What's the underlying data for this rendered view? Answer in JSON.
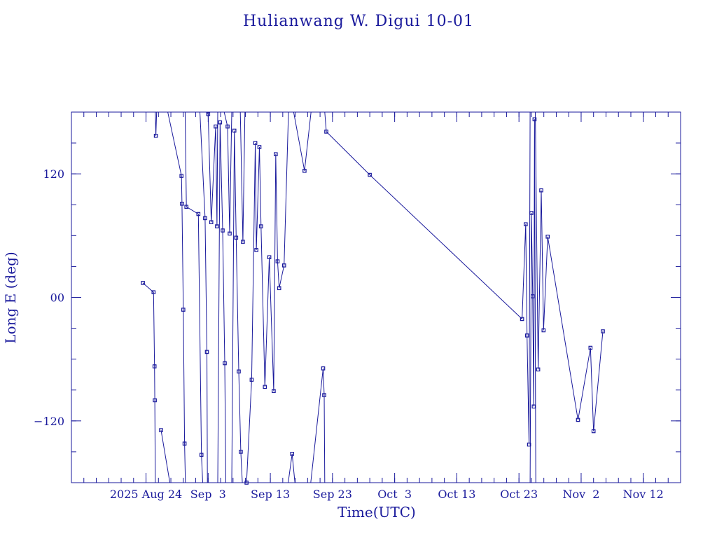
{
  "chart_data": {
    "type": "line",
    "title": "Hulianwang W. Digui 10-01",
    "xlabel": "Time(UTC)",
    "ylabel": "Long E (deg)",
    "x_type": "date",
    "xlim": [
      "2025-08-12T00:00",
      "2025-11-18T00:00"
    ],
    "ylim": [
      -180,
      180
    ],
    "x_tick_labels": [
      {
        "date": "2025-08-24",
        "label": "2025 Aug 24"
      },
      {
        "date": "2025-09-03",
        "label": "Sep  3"
      },
      {
        "date": "2025-09-13",
        "label": "Sep 13"
      },
      {
        "date": "2025-09-23",
        "label": "Sep 23"
      },
      {
        "date": "2025-10-03",
        "label": "Oct  3"
      },
      {
        "date": "2025-10-13",
        "label": "Oct 13"
      },
      {
        "date": "2025-10-23",
        "label": "Oct 23"
      },
      {
        "date": "2025-11-02",
        "label": "Nov  2"
      },
      {
        "date": "2025-11-12",
        "label": "Nov 12"
      }
    ],
    "y_ticks": [
      {
        "value": 120,
        "label": "120"
      },
      {
        "value": 0,
        "label": "00"
      },
      {
        "value": -120,
        "label": "−120"
      }
    ],
    "y_minor_step": 30,
    "x_minor_step_days": 2,
    "segments": [
      [
        {
          "x": "2025-08-23T12:00",
          "y": 14
        },
        {
          "x": "2025-08-25T05:00",
          "y": 5
        },
        {
          "x": "2025-08-25T09:00",
          "y": -67
        },
        {
          "x": "2025-08-25T10:00",
          "y": -100
        },
        {
          "x": "2025-08-25T12:00",
          "y": -180
        }
      ],
      [
        {
          "x": "2025-08-25T12:00",
          "y": 180
        },
        {
          "x": "2025-08-25T14:00",
          "y": 157
        },
        {
          "x": "2025-08-25T17:00",
          "y": 180
        }
      ],
      [
        {
          "x": "2025-08-26T10:00",
          "y": -129
        },
        {
          "x": "2025-08-27T20:00",
          "y": -180
        }
      ],
      [
        {
          "x": "2025-08-27T12:00",
          "y": 180
        },
        {
          "x": "2025-08-29T17:00",
          "y": 118
        },
        {
          "x": "2025-08-29T19:00",
          "y": 91
        },
        {
          "x": "2025-08-30T00:00",
          "y": -12
        },
        {
          "x": "2025-08-30T05:00",
          "y": -142
        },
        {
          "x": "2025-08-30T08:00",
          "y": -180
        }
      ],
      [
        {
          "x": "2025-08-30T07:00",
          "y": 180
        },
        {
          "x": "2025-08-30T12:00",
          "y": 88
        },
        {
          "x": "2025-09-01T10:00",
          "y": 81
        },
        {
          "x": "2025-09-01T22:00",
          "y": -153
        },
        {
          "x": "2025-09-02T03:00",
          "y": -180
        }
      ],
      [
        {
          "x": "2025-09-01T16:00",
          "y": 180
        },
        {
          "x": "2025-09-02T12:00",
          "y": 77
        },
        {
          "x": "2025-09-02T19:00",
          "y": -53
        },
        {
          "x": "2025-09-02T21:00",
          "y": -180
        }
      ],
      [
        {
          "x": "2025-09-02T18:00",
          "y": 180
        },
        {
          "x": "2025-09-03T00:00",
          "y": 178
        },
        {
          "x": "2025-09-03T12:00",
          "y": 73
        },
        {
          "x": "2025-09-04T05:00",
          "y": 166
        },
        {
          "x": "2025-09-04T10:00",
          "y": 69
        },
        {
          "x": "2025-09-04T13:00",
          "y": 180
        }
      ],
      [
        {
          "x": "2025-09-04T13:00",
          "y": -180
        },
        {
          "x": "2025-09-04T22:00",
          "y": 170
        },
        {
          "x": "2025-09-05T08:00",
          "y": 65
        },
        {
          "x": "2025-09-05T16:00",
          "y": -64
        },
        {
          "x": "2025-09-05T20:00",
          "y": -180
        }
      ],
      [
        {
          "x": "2025-09-05T14:00",
          "y": 180
        },
        {
          "x": "2025-09-06T03:00",
          "y": 166
        },
        {
          "x": "2025-09-06T11:00",
          "y": 62
        },
        {
          "x": "2025-09-06T19:00",
          "y": 180
        }
      ],
      [
        {
          "x": "2025-09-06T19:00",
          "y": -180
        },
        {
          "x": "2025-09-07T05:00",
          "y": 162
        },
        {
          "x": "2025-09-07T12:00",
          "y": 58
        },
        {
          "x": "2025-09-07T22:00",
          "y": -72
        },
        {
          "x": "2025-09-08T06:00",
          "y": -150
        },
        {
          "x": "2025-09-08T12:00",
          "y": -180
        }
      ],
      [
        {
          "x": "2025-09-08T04:00",
          "y": 180
        },
        {
          "x": "2025-09-08T14:00",
          "y": 54
        },
        {
          "x": "2025-09-08T22:00",
          "y": 180
        }
      ],
      [
        {
          "x": "2025-09-09T00:00",
          "y": -180
        },
        {
          "x": "2025-09-09T04:00",
          "y": -180
        },
        {
          "x": "2025-09-10T00:00",
          "y": -80
        },
        {
          "x": "2025-09-10T14:00",
          "y": 150
        },
        {
          "x": "2025-09-10T18:00",
          "y": 46
        },
        {
          "x": "2025-09-11T06:00",
          "y": 146
        },
        {
          "x": "2025-09-11T12:00",
          "y": 69
        },
        {
          "x": "2025-09-12T03:00",
          "y": -87
        },
        {
          "x": "2025-09-12T20:00",
          "y": 39
        },
        {
          "x": "2025-09-13T13:00",
          "y": -91
        },
        {
          "x": "2025-09-13T21:00",
          "y": 139
        },
        {
          "x": "2025-09-14T04:00",
          "y": 35
        },
        {
          "x": "2025-09-14T10:00",
          "y": 9
        },
        {
          "x": "2025-09-15T05:00",
          "y": 31
        },
        {
          "x": "2025-09-15T22:00",
          "y": 180
        }
      ],
      [
        {
          "x": "2025-09-15T21:00",
          "y": -180
        },
        {
          "x": "2025-09-16T12:00",
          "y": -152
        },
        {
          "x": "2025-09-16T23:00",
          "y": -180
        }
      ],
      [
        {
          "x": "2025-09-16T18:00",
          "y": 180
        },
        {
          "x": "2025-09-18T12:00",
          "y": 123
        },
        {
          "x": "2025-09-19T13:00",
          "y": 180
        }
      ],
      [
        {
          "x": "2025-09-19T12:00",
          "y": -180
        },
        {
          "x": "2025-09-21T12:00",
          "y": -69
        },
        {
          "x": "2025-09-21T16:00",
          "y": -95
        },
        {
          "x": "2025-09-21T18:00",
          "y": -180
        }
      ],
      [
        {
          "x": "2025-09-21T18:00",
          "y": 180
        },
        {
          "x": "2025-09-22T00:00",
          "y": 161
        },
        {
          "x": "2025-09-29T00:00",
          "y": 119
        },
        {
          "x": "2025-10-23T12:00",
          "y": -21
        },
        {
          "x": "2025-10-24T02:00",
          "y": 71
        },
        {
          "x": "2025-10-24T07:00",
          "y": -37
        },
        {
          "x": "2025-10-24T15:00",
          "y": -143
        },
        {
          "x": "2025-10-24T19:00",
          "y": 180
        }
      ],
      [
        {
          "x": "2025-10-24T19:00",
          "y": -180
        },
        {
          "x": "2025-10-25T00:00",
          "y": 82
        },
        {
          "x": "2025-10-25T05:00",
          "y": 1
        },
        {
          "x": "2025-10-25T09:00",
          "y": -106
        },
        {
          "x": "2025-10-25T12:00",
          "y": 173
        },
        {
          "x": "2025-10-25T17:00",
          "y": -180
        }
      ],
      [
        {
          "x": "2025-10-25T15:00",
          "y": 180
        },
        {
          "x": "2025-10-26T02:00",
          "y": -70
        },
        {
          "x": "2025-10-26T14:00",
          "y": 104
        },
        {
          "x": "2025-10-26T23:00",
          "y": -32
        },
        {
          "x": "2025-10-27T15:00",
          "y": 59
        },
        {
          "x": "2025-11-01T12:00",
          "y": -119
        },
        {
          "x": "2025-11-03T12:00",
          "y": -49
        },
        {
          "x": "2025-11-04T00:00",
          "y": -130
        },
        {
          "x": "2025-11-05T12:00",
          "y": -33
        }
      ]
    ],
    "markers": [
      {
        "x": "2025-08-23T12:00",
        "y": 14
      },
      {
        "x": "2025-08-25T05:00",
        "y": 5
      },
      {
        "x": "2025-08-25T09:00",
        "y": -67
      },
      {
        "x": "2025-08-25T10:00",
        "y": -100
      },
      {
        "x": "2025-08-25T14:00",
        "y": 157
      },
      {
        "x": "2025-08-26T10:00",
        "y": -129
      },
      {
        "x": "2025-08-29T17:00",
        "y": 118
      },
      {
        "x": "2025-08-29T19:00",
        "y": 91
      },
      {
        "x": "2025-08-30T00:00",
        "y": -12
      },
      {
        "x": "2025-08-30T05:00",
        "y": -142
      },
      {
        "x": "2025-08-30T12:00",
        "y": 88
      },
      {
        "x": "2025-09-01T10:00",
        "y": 81
      },
      {
        "x": "2025-09-01T22:00",
        "y": -153
      },
      {
        "x": "2025-09-02T12:00",
        "y": 77
      },
      {
        "x": "2025-09-02T19:00",
        "y": -53
      },
      {
        "x": "2025-09-03T00:00",
        "y": 178
      },
      {
        "x": "2025-09-03T12:00",
        "y": 73
      },
      {
        "x": "2025-09-04T05:00",
        "y": 166
      },
      {
        "x": "2025-09-04T10:00",
        "y": 69
      },
      {
        "x": "2025-09-04T22:00",
        "y": 170
      },
      {
        "x": "2025-09-05T08:00",
        "y": 65
      },
      {
        "x": "2025-09-05T16:00",
        "y": -64
      },
      {
        "x": "2025-09-06T03:00",
        "y": 166
      },
      {
        "x": "2025-09-06T11:00",
        "y": 62
      },
      {
        "x": "2025-09-07T05:00",
        "y": 162
      },
      {
        "x": "2025-09-07T12:00",
        "y": 58
      },
      {
        "x": "2025-09-07T22:00",
        "y": -72
      },
      {
        "x": "2025-09-08T06:00",
        "y": -150
      },
      {
        "x": "2025-09-08T14:00",
        "y": 54
      },
      {
        "x": "2025-09-09T04:00",
        "y": -180
      },
      {
        "x": "2025-09-10T00:00",
        "y": -80
      },
      {
        "x": "2025-09-10T14:00",
        "y": 150
      },
      {
        "x": "2025-09-10T18:00",
        "y": 46
      },
      {
        "x": "2025-09-11T06:00",
        "y": 146
      },
      {
        "x": "2025-09-11T12:00",
        "y": 69
      },
      {
        "x": "2025-09-12T03:00",
        "y": -87
      },
      {
        "x": "2025-09-12T20:00",
        "y": 39
      },
      {
        "x": "2025-09-13T13:00",
        "y": -91
      },
      {
        "x": "2025-09-13T21:00",
        "y": 139
      },
      {
        "x": "2025-09-14T04:00",
        "y": 35
      },
      {
        "x": "2025-09-14T10:00",
        "y": 9
      },
      {
        "x": "2025-09-15T05:00",
        "y": 31
      },
      {
        "x": "2025-09-16T12:00",
        "y": -152
      },
      {
        "x": "2025-09-18T12:00",
        "y": 123
      },
      {
        "x": "2025-09-21T12:00",
        "y": -69
      },
      {
        "x": "2025-09-21T16:00",
        "y": -95
      },
      {
        "x": "2025-09-22T00:00",
        "y": 161
      },
      {
        "x": "2025-09-29T00:00",
        "y": 119
      },
      {
        "x": "2025-10-23T12:00",
        "y": -21
      },
      {
        "x": "2025-10-24T02:00",
        "y": 71
      },
      {
        "x": "2025-10-24T07:00",
        "y": -37
      },
      {
        "x": "2025-10-24T15:00",
        "y": -143
      },
      {
        "x": "2025-10-25T00:00",
        "y": 82
      },
      {
        "x": "2025-10-25T05:00",
        "y": 1
      },
      {
        "x": "2025-10-25T09:00",
        "y": -106
      },
      {
        "x": "2025-10-25T12:00",
        "y": 173
      },
      {
        "x": "2025-10-26T02:00",
        "y": -70
      },
      {
        "x": "2025-10-26T14:00",
        "y": 104
      },
      {
        "x": "2025-10-26T23:00",
        "y": -32
      },
      {
        "x": "2025-10-27T15:00",
        "y": 59
      },
      {
        "x": "2025-11-01T12:00",
        "y": -119
      },
      {
        "x": "2025-11-03T12:00",
        "y": -49
      },
      {
        "x": "2025-11-04T00:00",
        "y": -130
      },
      {
        "x": "2025-11-05T12:00",
        "y": -33
      }
    ],
    "grid": false,
    "legend": "none",
    "color": "#1a1a9c"
  }
}
